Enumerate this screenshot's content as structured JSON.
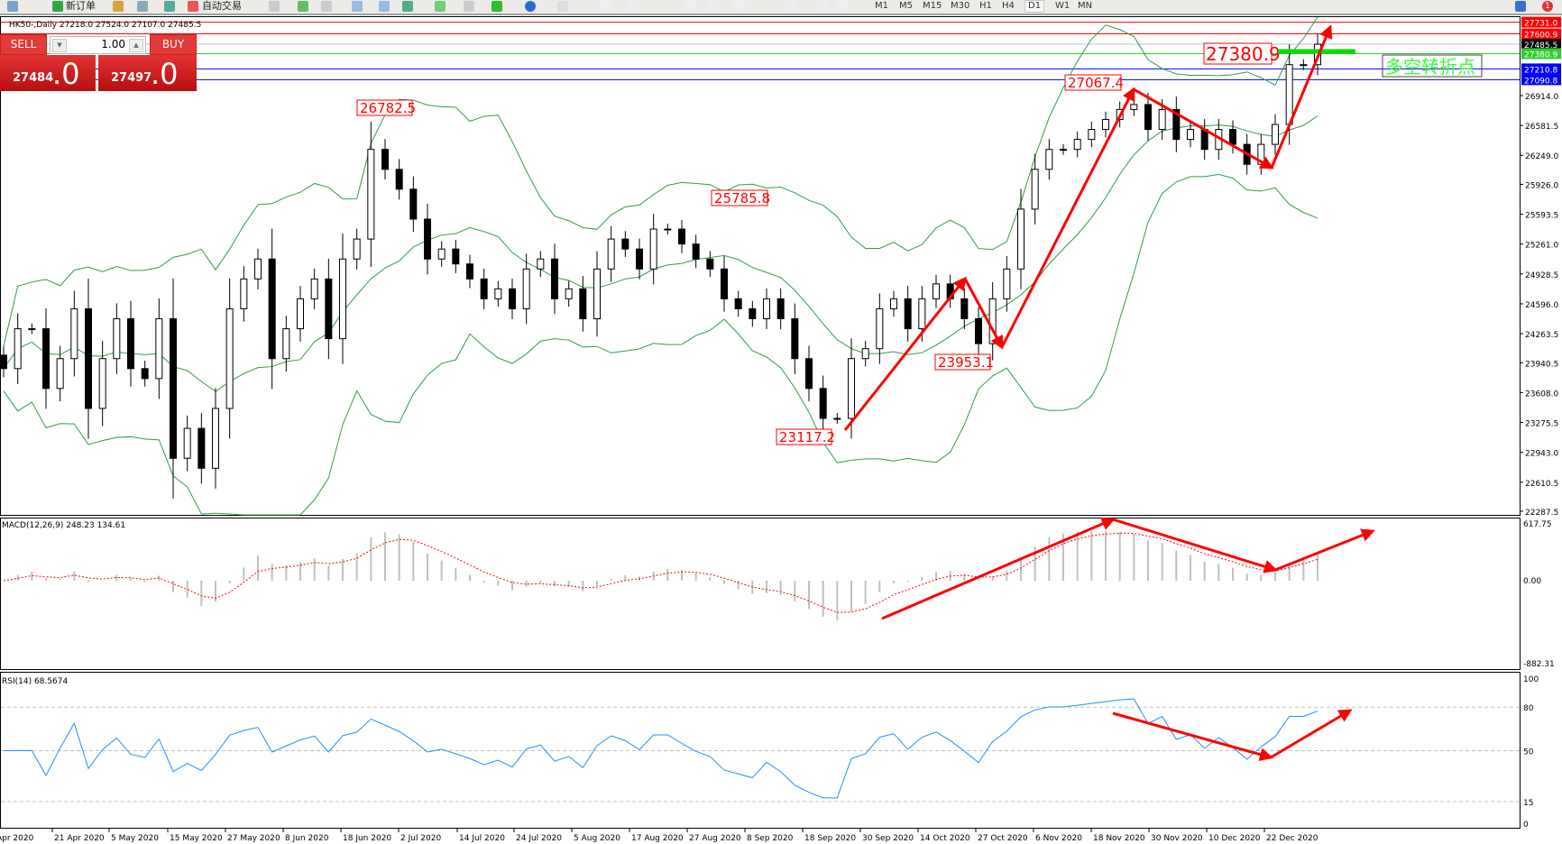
{
  "toolbar": {
    "new_order": "新订单",
    "auto_trading": "自动交易",
    "timeframes": [
      "M1",
      "M5",
      "M15",
      "M30",
      "H1",
      "H4",
      "D1",
      "W1",
      "MN"
    ],
    "active_timeframe": "D1",
    "notification_count": "1"
  },
  "chart_header": "HK50-,Daily  27218.0 27524.0 27107.0 27485.5",
  "trade_panel": {
    "sell_label": "SELL",
    "buy_label": "BUY",
    "lot": "1.00",
    "sell_price_main": "27484",
    "sell_price_big": ".0",
    "buy_price_main": "27497",
    "buy_price_big": ".0"
  },
  "chart_data": [
    {
      "type": "candlestick",
      "symbol": "HK50-",
      "timeframe": "Daily",
      "closes": [
        23875,
        24319,
        24319,
        23654,
        23986,
        24541,
        23432,
        23986,
        24430,
        23875,
        23764,
        24430,
        22877,
        23210,
        22766,
        23432,
        24541,
        24873,
        25095,
        23986,
        24319,
        24652,
        24873,
        24208,
        25095,
        25317,
        26315,
        26093,
        25872,
        25539,
        25095,
        25206,
        25040,
        24873,
        24652,
        24763,
        24541,
        24984,
        25095,
        24652,
        24763,
        24430,
        24984,
        25317,
        25206,
        24984,
        25428,
        25428,
        25262,
        25095,
        24984,
        24652,
        24541,
        24430,
        24652,
        24430,
        23986,
        23654,
        23321,
        23321,
        23986,
        24097,
        24541,
        24652,
        24319,
        24652,
        24818,
        24652,
        24430,
        24153,
        24652,
        24984,
        25650,
        26093,
        26315,
        26315,
        26426,
        26537,
        26648,
        26759,
        26814,
        26537,
        26759,
        26426,
        26537,
        26315,
        26537,
        26371,
        26149,
        26371,
        26592,
        27258,
        27258,
        27485.5
      ],
      "ylim": [
        22287.5,
        27787
      ],
      "y_ticks": [
        "26914.0",
        "26581.5",
        "26249.0",
        "25926.0",
        "25593.5",
        "25261.0",
        "24928.5",
        "24596.0",
        "24263.5",
        "23940.5",
        "23608.0",
        "23275.5",
        "22943.0",
        "22610.5",
        "22287.5"
      ],
      "x_ticks": [
        "Apr 2020",
        "21 Apr 2020",
        "5 May 2020",
        "15 May 2020",
        "27 May 2020",
        "8 Jun 2020",
        "18 Jun 2020",
        "2 Jul 2020",
        "14 Jul 2020",
        "24 Jul 2020",
        "5 Aug 2020",
        "17 Aug 2020",
        "27 Aug 2020",
        "8 Sep 2020",
        "18 Sep 2020",
        "30 Sep 2020",
        "14 Oct 2020",
        "27 Oct 2020",
        "6 Nov 2020",
        "18 Nov 2020",
        "30 Nov 2020",
        "10 Dec 2020",
        "22 Dec 2020"
      ],
      "overlay": "Bollinger Bands",
      "price_lines": [
        {
          "value": "27731.0",
          "color": "#ff0000"
        },
        {
          "value": "27600.9",
          "color": "#ff0000"
        },
        {
          "value": "27485.5",
          "color": "#000000"
        },
        {
          "value": "27380.9",
          "color": "#32cd32"
        },
        {
          "value": "27210.8",
          "color": "#0000ff"
        },
        {
          "value": "27090.8",
          "color": "#0000ff"
        }
      ],
      "annotations": [
        "26782.5",
        "25785.8",
        "23117.2",
        "23953.1",
        "27067.4",
        "27380.9"
      ],
      "turning_point_label": "多空转折点",
      "colors": {
        "bands": "#2e9e46",
        "arrows": "#ff0000",
        "bull": "#ffffff",
        "bear": "#000000"
      }
    },
    {
      "type": "bar+line",
      "title": "MACD(12,26,9) 248.23 134.61",
      "y_ticks": [
        "617.75",
        "0.00",
        "-882.31"
      ],
      "ylim": [
        -882.31,
        617.75
      ],
      "colors": {
        "histogram": "#c0c0c0",
        "signal": "#ff0000"
      }
    },
    {
      "type": "line",
      "title": "RSI(14) 68.5674",
      "y_ticks": [
        "100",
        "80",
        "50",
        "15",
        "0"
      ],
      "ylim": [
        0,
        100
      ],
      "levels": [
        80,
        50,
        15
      ],
      "colors": {
        "line": "#1e90ff"
      }
    }
  ]
}
